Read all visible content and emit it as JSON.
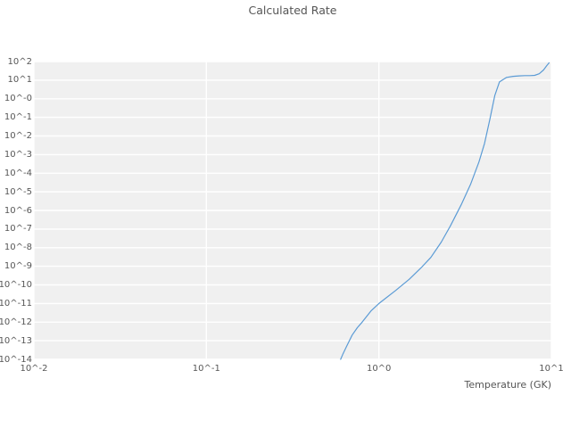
{
  "chart_data": {
    "type": "line",
    "title": "Calculated Rate",
    "xlabel": "Temperature (GK)",
    "ylabel": "",
    "x_scale": "log",
    "y_scale": "log",
    "xlim": [
      0.01,
      10
    ],
    "ylim": [
      1e-14,
      100
    ],
    "grid": true,
    "legend_position": "none",
    "plot_bg_color": "#f0f0f0",
    "grid_color": "#ffffff",
    "x_tick_values": [
      0.01,
      0.1,
      1,
      10
    ],
    "x_tick_labels": [
      "10^-2",
      "10^-1",
      "10^0",
      "10^1"
    ],
    "y_tick_exponents": [
      2,
      1,
      0,
      -1,
      -2,
      -3,
      -4,
      -5,
      -6,
      -7,
      -8,
      -9,
      -10,
      -11,
      -12,
      -13,
      -14
    ],
    "y_tick_labels": [
      "10^2",
      "10^1",
      "10^-0",
      "10^-1",
      "10^-2",
      "10^-3",
      "10^-4",
      "10^-5",
      "10^-6",
      "10^-7",
      "10^-8",
      "10^-9",
      "10^-10",
      "10^-11",
      "10^-12",
      "10^-13",
      "10^-14"
    ],
    "series": [
      {
        "name": "calculated-rate",
        "color": "#5b9bd5",
        "x": [
          0.6,
          0.62,
          0.65,
          0.7,
          0.75,
          0.8,
          0.9,
          1.0,
          1.1,
          1.25,
          1.5,
          1.75,
          2.0,
          2.3,
          2.6,
          3.0,
          3.4,
          3.8,
          4.1,
          4.4,
          4.7,
          5.0,
          5.5,
          6.0,
          6.5,
          7.0,
          7.5,
          8.0,
          8.5,
          9.0,
          9.4,
          9.7
        ],
        "y": [
          1e-14,
          2e-14,
          5e-14,
          2e-13,
          5e-13,
          1e-12,
          4e-12,
          1e-11,
          2e-11,
          5e-11,
          2e-10,
          8e-10,
          3e-09,
          2e-08,
          1.5e-07,
          2e-06,
          2.5e-05,
          0.0004,
          0.004,
          0.08,
          1.5,
          8,
          14,
          16,
          17,
          17.5,
          17.5,
          18,
          22,
          35,
          60,
          85
        ]
      }
    ]
  }
}
